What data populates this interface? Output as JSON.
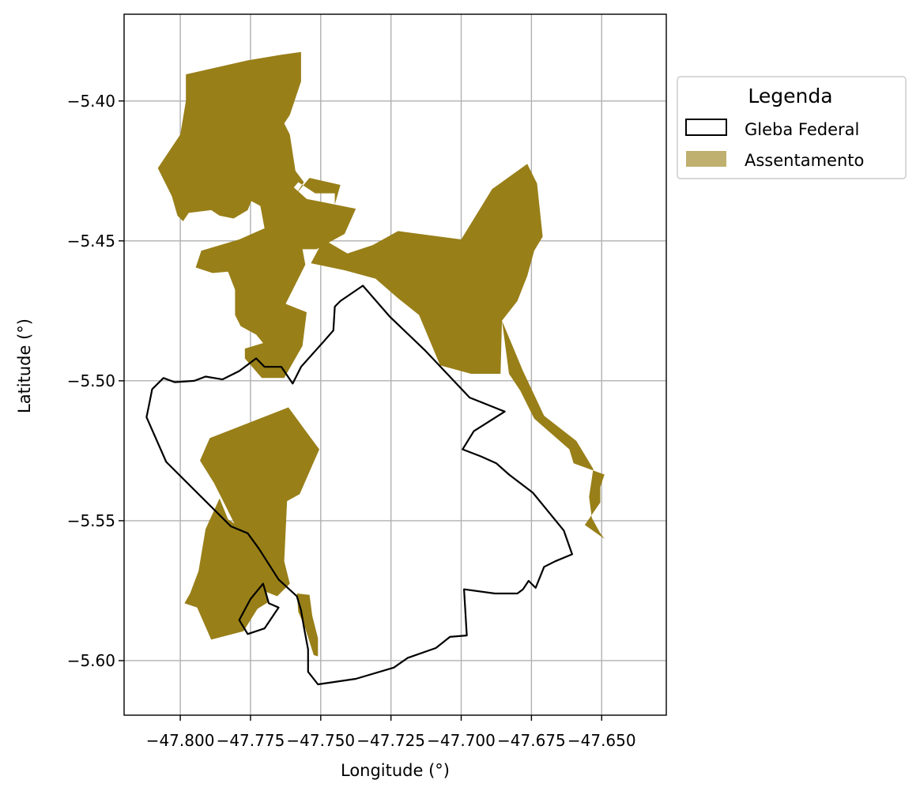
{
  "chart_data": {
    "type": "map",
    "xlabel": "Longitude (°)",
    "ylabel": "Latitude (°)",
    "xlim": [
      -47.82,
      -47.627
    ],
    "ylim": [
      -5.6195,
      -5.369
    ],
    "grid": true,
    "x_ticks": [
      {
        "value": -47.8,
        "label": "−47.800"
      },
      {
        "value": -47.775,
        "label": "−47.775"
      },
      {
        "value": -47.75,
        "label": "−47.750"
      },
      {
        "value": -47.725,
        "label": "−47.725"
      },
      {
        "value": -47.7,
        "label": "−47.700"
      },
      {
        "value": -47.675,
        "label": "−47.675"
      },
      {
        "value": -47.65,
        "label": "−47.650"
      }
    ],
    "y_ticks": [
      {
        "value": -5.4,
        "label": "−5.40"
      },
      {
        "value": -5.45,
        "label": "−5.45"
      },
      {
        "value": -5.5,
        "label": "−5.50"
      },
      {
        "value": -5.55,
        "label": "−5.55"
      },
      {
        "value": -5.6,
        "label": "−5.60"
      }
    ],
    "legend": {
      "title": "Legenda",
      "placement": "outside-right-top",
      "entries": [
        {
          "label": "Gleba Federal",
          "style": "outline",
          "color": "#000000"
        },
        {
          "label": "Assentamento",
          "style": "fill",
          "color": "#987f18"
        }
      ]
    },
    "layers": [
      {
        "name": "Assentamento",
        "fill": "#987f18",
        "polygons": [
          [
            [
              -47.798,
              -5.3905
            ],
            [
              -47.776,
              -5.3855
            ],
            [
              -47.764,
              -5.3835
            ],
            [
              -47.757,
              -5.3825
            ],
            [
              -47.757,
              -5.393
            ],
            [
              -47.761,
              -5.405
            ],
            [
              -47.763,
              -5.408
            ],
            [
              -47.761,
              -5.412
            ],
            [
              -47.759,
              -5.425
            ],
            [
              -47.756,
              -5.429
            ],
            [
              -47.759,
              -5.4335
            ],
            [
              -47.754,
              -5.4275
            ],
            [
              -47.743,
              -5.43
            ],
            [
              -47.749,
              -5.451
            ],
            [
              -47.745,
              -5.4465
            ],
            [
              -47.745,
              -5.433
            ],
            [
              -47.752,
              -5.433
            ],
            [
              -47.758,
              -5.429
            ],
            [
              -47.763,
              -5.435
            ],
            [
              -47.768,
              -5.437
            ],
            [
              -47.771,
              -5.4345
            ],
            [
              -47.774,
              -5.434
            ],
            [
              -47.776,
              -5.439
            ],
            [
              -47.781,
              -5.442
            ],
            [
              -47.786,
              -5.441
            ],
            [
              -47.789,
              -5.439
            ],
            [
              -47.797,
              -5.44
            ],
            [
              -47.799,
              -5.443
            ],
            [
              -47.801,
              -5.441
            ],
            [
              -47.803,
              -5.434
            ],
            [
              -47.808,
              -5.424
            ],
            [
              -47.8,
              -5.412
            ],
            [
              -47.798,
              -5.4
            ],
            [
              -47.798,
              -5.3905
            ]
          ],
          [
            [
              -47.778,
              -5.434
            ],
            [
              -47.7715,
              -5.4375
            ],
            [
              -47.77,
              -5.4455
            ],
            [
              -47.779,
              -5.4495
            ],
            [
              -47.7925,
              -5.4535
            ],
            [
              -47.7945,
              -5.4595
            ],
            [
              -47.7885,
              -5.4615
            ],
            [
              -47.783,
              -5.461
            ],
            [
              -47.7805,
              -5.4675
            ],
            [
              -47.7805,
              -5.4765
            ],
            [
              -47.7785,
              -5.4805
            ],
            [
              -47.773,
              -5.4835
            ],
            [
              -47.7705,
              -5.4865
            ],
            [
              -47.777,
              -5.4885
            ],
            [
              -47.777,
              -5.492
            ],
            [
              -47.771,
              -5.499
            ],
            [
              -47.763,
              -5.499
            ],
            [
              -47.7565,
              -5.4875
            ],
            [
              -47.755,
              -5.4755
            ],
            [
              -47.7625,
              -5.4725
            ],
            [
              -47.7555,
              -5.4585
            ],
            [
              -47.7565,
              -5.453
            ],
            [
              -47.7515,
              -5.453
            ],
            [
              -47.7415,
              -5.4475
            ],
            [
              -47.7375,
              -5.4385
            ],
            [
              -47.755,
              -5.435
            ],
            [
              -47.7645,
              -5.4265
            ],
            [
              -47.7645,
              -5.4235
            ],
            [
              -47.778,
              -5.434
            ]
          ],
          [
            [
              -47.7535,
              -5.458
            ],
            [
              -47.749,
              -5.4495
            ],
            [
              -47.7405,
              -5.4545
            ],
            [
              -47.7315,
              -5.4515
            ],
            [
              -47.7225,
              -5.4465
            ],
            [
              -47.7,
              -5.4495
            ],
            [
              -47.689,
              -5.4315
            ],
            [
              -47.6765,
              -5.4225
            ],
            [
              -47.673,
              -5.4295
            ],
            [
              -47.671,
              -5.4485
            ],
            [
              -47.674,
              -5.4535
            ],
            [
              -47.6765,
              -5.4625
            ],
            [
              -47.68,
              -5.4715
            ],
            [
              -47.6855,
              -5.4785
            ],
            [
              -47.686,
              -5.4975
            ],
            [
              -47.6965,
              -5.4975
            ],
            [
              -47.7075,
              -5.4945
            ],
            [
              -47.715,
              -5.4765
            ],
            [
              -47.7225,
              -5.4705
            ],
            [
              -47.7305,
              -5.4635
            ],
            [
              -47.7415,
              -5.4605
            ],
            [
              -47.7535,
              -5.458
            ]
          ],
          [
            [
              -47.6855,
              -5.4785
            ],
            [
              -47.678,
              -5.4965
            ],
            [
              -47.6705,
              -5.5125
            ],
            [
              -47.659,
              -5.5215
            ],
            [
              -47.653,
              -5.5315
            ],
            [
              -47.6545,
              -5.5415
            ],
            [
              -47.6535,
              -5.549
            ],
            [
              -47.6505,
              -5.5545
            ],
            [
              -47.649,
              -5.5565
            ],
            [
              -47.656,
              -5.5515
            ],
            [
              -47.6505,
              -5.5435
            ],
            [
              -47.6505,
              -5.538
            ],
            [
              -47.649,
              -5.5335
            ],
            [
              -47.66,
              -5.5295
            ],
            [
              -47.6615,
              -5.5245
            ],
            [
              -47.674,
              -5.5135
            ],
            [
              -47.679,
              -5.5035
            ],
            [
              -47.683,
              -5.4975
            ],
            [
              -47.6855,
              -5.4785
            ]
          ],
          [
            [
              -47.793,
              -5.5285
            ],
            [
              -47.7895,
              -5.5205
            ],
            [
              -47.7615,
              -5.5095
            ],
            [
              -47.7575,
              -5.515
            ],
            [
              -47.7505,
              -5.5245
            ],
            [
              -47.754,
              -5.5325
            ],
            [
              -47.7575,
              -5.5405
            ],
            [
              -47.762,
              -5.543
            ],
            [
              -47.763,
              -5.5645
            ],
            [
              -47.761,
              -5.5725
            ],
            [
              -47.7655,
              -5.577
            ],
            [
              -47.7755,
              -5.573
            ],
            [
              -47.7775,
              -5.5605
            ],
            [
              -47.7805,
              -5.5515
            ],
            [
              -47.784,
              -5.5445
            ],
            [
              -47.788,
              -5.5365
            ],
            [
              -47.793,
              -5.5285
            ]
          ],
          [
            [
              -47.786,
              -5.542
            ],
            [
              -47.791,
              -5.553
            ],
            [
              -47.7935,
              -5.568
            ],
            [
              -47.7965,
              -5.576
            ],
            [
              -47.7985,
              -5.5795
            ],
            [
              -47.794,
              -5.581
            ],
            [
              -47.789,
              -5.5925
            ],
            [
              -47.7775,
              -5.5895
            ],
            [
              -47.7725,
              -5.5815
            ],
            [
              -47.7685,
              -5.579
            ],
            [
              -47.7715,
              -5.5645
            ],
            [
              -47.777,
              -5.5535
            ],
            [
              -47.783,
              -5.5495
            ],
            [
              -47.786,
              -5.542
            ]
          ],
          [
            [
              -47.7585,
              -5.576
            ],
            [
              -47.754,
              -5.5765
            ],
            [
              -47.753,
              -5.584
            ],
            [
              -47.751,
              -5.592
            ],
            [
              -47.751,
              -5.5985
            ],
            [
              -47.7525,
              -5.598
            ],
            [
              -47.7555,
              -5.5885
            ],
            [
              -47.758,
              -5.5825
            ],
            [
              -47.7585,
              -5.576
            ]
          ]
        ]
      },
      {
        "name": "Gleba Federal",
        "stroke": "#000000",
        "polygons": [
          [
            [
              -47.7585,
              -5.577
            ],
            [
              -47.765,
              -5.571
            ],
            [
              -47.772,
              -5.56
            ],
            [
              -47.776,
              -5.5545
            ],
            [
              -47.782,
              -5.552
            ],
            [
              -47.805,
              -5.529
            ],
            [
              -47.812,
              -5.513
            ],
            [
              -47.811,
              -5.508
            ],
            [
              -47.81,
              -5.503
            ],
            [
              -47.806,
              -5.499
            ],
            [
              -47.802,
              -5.5005
            ],
            [
              -47.795,
              -5.5
            ],
            [
              -47.791,
              -5.4985
            ],
            [
              -47.785,
              -5.4995
            ],
            [
              -47.779,
              -5.4965
            ],
            [
              -47.773,
              -5.492
            ],
            [
              -47.77,
              -5.495
            ],
            [
              -47.764,
              -5.495
            ],
            [
              -47.76,
              -5.501
            ],
            [
              -47.757,
              -5.495
            ],
            [
              -47.749,
              -5.486
            ],
            [
              -47.7455,
              -5.482
            ],
            [
              -47.745,
              -5.4735
            ],
            [
              -47.743,
              -5.4715
            ],
            [
              -47.735,
              -5.466
            ],
            [
              -47.7255,
              -5.477
            ],
            [
              -47.713,
              -5.489
            ],
            [
              -47.697,
              -5.506
            ],
            [
              -47.6845,
              -5.511
            ],
            [
              -47.6955,
              -5.518
            ],
            [
              -47.6995,
              -5.5245
            ],
            [
              -47.693,
              -5.527
            ],
            [
              -47.6875,
              -5.5295
            ],
            [
              -47.683,
              -5.5335
            ],
            [
              -47.6745,
              -5.54
            ],
            [
              -47.6635,
              -5.5535
            ],
            [
              -47.6605,
              -5.562
            ],
            [
              -47.6665,
              -5.5645
            ],
            [
              -47.6705,
              -5.5665
            ],
            [
              -47.6735,
              -5.574
            ],
            [
              -47.676,
              -5.5715
            ],
            [
              -47.678,
              -5.5745
            ],
            [
              -47.68,
              -5.576
            ],
            [
              -47.688,
              -5.576
            ],
            [
              -47.699,
              -5.5745
            ],
            [
              -47.6985,
              -5.583
            ],
            [
              -47.698,
              -5.591
            ],
            [
              -47.704,
              -5.5915
            ],
            [
              -47.709,
              -5.5955
            ],
            [
              -47.719,
              -5.599
            ],
            [
              -47.724,
              -5.6025
            ],
            [
              -47.7375,
              -5.6065
            ],
            [
              -47.751,
              -5.6085
            ],
            [
              -47.7545,
              -5.604
            ],
            [
              -47.7545,
              -5.596
            ],
            [
              -47.756,
              -5.588
            ],
            [
              -47.757,
              -5.582
            ],
            [
              -47.7585,
              -5.577
            ]
          ],
          [
            [
              -47.7685,
              -5.5795
            ],
            [
              -47.765,
              -5.581
            ],
            [
              -47.77,
              -5.5885
            ],
            [
              -47.776,
              -5.5905
            ],
            [
              -47.779,
              -5.5855
            ],
            [
              -47.775,
              -5.578
            ],
            [
              -47.7705,
              -5.5725
            ],
            [
              -47.7685,
              -5.5795
            ]
          ]
        ]
      }
    ]
  }
}
